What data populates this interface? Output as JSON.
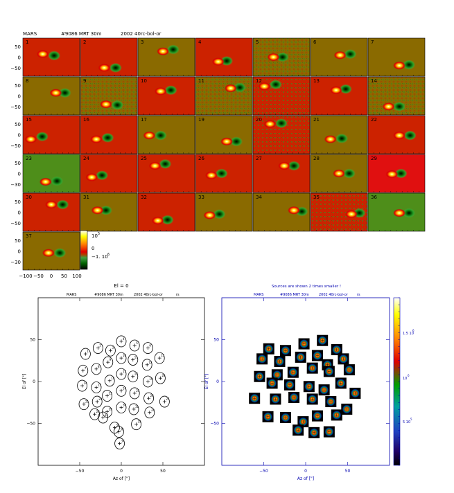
{
  "header": {
    "source": "MARS",
    "scan": "#9086 MRT 30m",
    "project": "2002 40rc-bol-or"
  },
  "colors": {
    "bg_red": "#cc2200",
    "bg_olive": "#8a6a00",
    "bg_green": "#4e8e1a",
    "bg_bright_red": "#e01010",
    "cb_ticks_color": "#000000",
    "right_plot_text": "#0000b0"
  },
  "top_grid": {
    "panels": [
      {
        "n": "1",
        "bg": "red"
      },
      {
        "n": "2",
        "bg": "red"
      },
      {
        "n": "3",
        "bg": "olive"
      },
      {
        "n": "4",
        "bg": "red"
      },
      {
        "n": "5",
        "bg": "olive_noisy"
      },
      {
        "n": "6",
        "bg": "olive"
      },
      {
        "n": "7",
        "bg": "olive"
      },
      {
        "n": "8",
        "bg": "olive"
      },
      {
        "n": "9",
        "bg": "olive_noisy"
      },
      {
        "n": "10",
        "bg": "red"
      },
      {
        "n": "11",
        "bg": "olive_noisy"
      },
      {
        "n": "12",
        "bg": "red_noisy"
      },
      {
        "n": "13",
        "bg": "red"
      },
      {
        "n": "14",
        "bg": "olive_noisy"
      },
      {
        "n": "15",
        "bg": "red"
      },
      {
        "n": "16",
        "bg": "red"
      },
      {
        "n": "17",
        "bg": "olive"
      },
      {
        "n": "19",
        "bg": "olive"
      },
      {
        "n": "20",
        "bg": "red_noisy"
      },
      {
        "n": "21",
        "bg": "olive"
      },
      {
        "n": "22",
        "bg": "red"
      },
      {
        "n": "23",
        "bg": "green"
      },
      {
        "n": "24",
        "bg": "red"
      },
      {
        "n": "25",
        "bg": "red"
      },
      {
        "n": "26",
        "bg": "red"
      },
      {
        "n": "27",
        "bg": "red"
      },
      {
        "n": "28",
        "bg": "olive"
      },
      {
        "n": "29",
        "bg": "bright_red"
      },
      {
        "n": "30",
        "bg": "red"
      },
      {
        "n": "31",
        "bg": "olive"
      },
      {
        "n": "32",
        "bg": "red"
      },
      {
        "n": "33",
        "bg": "olive"
      },
      {
        "n": "34",
        "bg": "olive"
      },
      {
        "n": "35",
        "bg": "red_noisy"
      },
      {
        "n": "36",
        "bg": "green"
      },
      {
        "n": "37",
        "bg": "olive"
      }
    ],
    "y_ticks_rows": [
      [
        "50",
        "0",
        "−50"
      ],
      [
        "50",
        "0",
        "−50"
      ],
      [
        "50",
        "0",
        "−50"
      ],
      [
        "50",
        "0",
        "−30"
      ],
      [
        "50",
        "0",
        "−50"
      ],
      [
        "50",
        "0",
        "−30"
      ]
    ],
    "x_ticks": [
      "−100",
      "−50",
      "0",
      "50",
      "100"
    ],
    "colorbar_labels": [
      "10",
      "5",
      "0",
      "−1. 10",
      "6"
    ]
  },
  "chart_data": [
    {
      "type": "scatter",
      "title": "El = 0",
      "subtitle_parts": [
        "MARS",
        "#9086 MRT 30m",
        "2002 40rc-bol-or",
        "rs"
      ],
      "xlabel": "Az of [\"]",
      "ylabel": "El of [\"]",
      "xlim": [
        -100,
        100
      ],
      "ylim": [
        -100,
        100
      ],
      "xticks": [
        "−50",
        "0",
        "50"
      ],
      "yticks": [
        "50",
        "0",
        "−50"
      ],
      "points": [
        {
          "id": "1",
          "x": -43,
          "y": 33
        },
        {
          "id": "2",
          "x": -28,
          "y": 40
        },
        {
          "id": "3",
          "x": -13,
          "y": 37
        },
        {
          "id": "4",
          "x": 0,
          "y": 48
        },
        {
          "id": "5",
          "x": 16,
          "y": 43
        },
        {
          "id": "6",
          "x": 32,
          "y": 40
        },
        {
          "id": "7",
          "x": -46,
          "y": 13
        },
        {
          "id": "8",
          "x": -30,
          "y": 15
        },
        {
          "id": "9",
          "x": -16,
          "y": 23
        },
        {
          "id": "10",
          "x": 0,
          "y": 28
        },
        {
          "id": "11",
          "x": 14,
          "y": 26
        },
        {
          "id": "12",
          "x": 31,
          "y": 20
        },
        {
          "id": "13",
          "x": 46,
          "y": 28
        },
        {
          "id": "14",
          "x": -47,
          "y": -5
        },
        {
          "id": "15",
          "x": -30,
          "y": -7
        },
        {
          "id": "16",
          "x": -14,
          "y": 1
        },
        {
          "id": "17",
          "x": 0,
          "y": 9
        },
        {
          "id": "18",
          "x": 14,
          "y": 6
        },
        {
          "id": "19",
          "x": 32,
          "y": 0
        },
        {
          "id": "20",
          "x": 47,
          "y": 4
        },
        {
          "id": "21",
          "x": -45,
          "y": -27
        },
        {
          "id": "22",
          "x": -29,
          "y": -24
        },
        {
          "id": "23",
          "x": -17,
          "y": -17
        },
        {
          "id": "24",
          "x": 0,
          "y": -11
        },
        {
          "id": "25",
          "x": 16,
          "y": -14
        },
        {
          "id": "26",
          "x": 33,
          "y": -20
        },
        {
          "id": "27",
          "x": 52,
          "y": -24
        },
        {
          "id": "28",
          "x": -32,
          "y": -39
        },
        {
          "id": "29",
          "x": -17,
          "y": -36
        },
        {
          "id": "30",
          "x": 0,
          "y": -31
        },
        {
          "id": "31",
          "x": 15,
          "y": -33
        },
        {
          "id": "32",
          "x": 34,
          "y": -37
        },
        {
          "id": "33",
          "x": -22,
          "y": -43
        },
        {
          "id": "34",
          "x": -8,
          "y": -55
        },
        {
          "id": "35",
          "x": 18,
          "y": -51
        },
        {
          "id": "36",
          "x": -3,
          "y": -60
        },
        {
          "id": "37",
          "x": -2,
          "y": -74
        }
      ]
    },
    {
      "type": "scatter",
      "title": "Sources are shown 2 times smaller !",
      "subtitle_parts": [
        "MARS",
        "#9086 MRT 30m",
        "2002 40rc-bol-or",
        "rs"
      ],
      "xlabel": "Az of [\"]",
      "ylabel": "El of [\"]",
      "xlim": [
        -100,
        100
      ],
      "ylim": [
        -100,
        100
      ],
      "xticks": [
        "−50",
        "0",
        "50"
      ],
      "yticks": [
        "50",
        "0",
        "−50"
      ],
      "colorbar_ticks": [
        "1.5 10",
        "6",
        "10",
        "6",
        "5 10",
        "5"
      ],
      "points": [
        {
          "x": -44,
          "y": 39
        },
        {
          "x": -24,
          "y": 37
        },
        {
          "x": -2,
          "y": 45
        },
        {
          "x": 20,
          "y": 49
        },
        {
          "x": 37,
          "y": 38
        },
        {
          "x": -52,
          "y": 27
        },
        {
          "x": -31,
          "y": 24
        },
        {
          "x": -6,
          "y": 29
        },
        {
          "x": 14,
          "y": 31
        },
        {
          "x": 26,
          "y": 20
        },
        {
          "x": 45,
          "y": 27
        },
        {
          "x": -55,
          "y": 6
        },
        {
          "x": -34,
          "y": 8
        },
        {
          "x": -15,
          "y": 11
        },
        {
          "x": 8,
          "y": 16
        },
        {
          "x": 28,
          "y": 12
        },
        {
          "x": 52,
          "y": 14
        },
        {
          "x": -40,
          "y": -2
        },
        {
          "x": -19,
          "y": -4
        },
        {
          "x": 4,
          "y": -6
        },
        {
          "x": 22,
          "y": -10
        },
        {
          "x": 42,
          "y": -2
        },
        {
          "x": 59,
          "y": -14
        },
        {
          "x": -61,
          "y": -20
        },
        {
          "x": -36,
          "y": -21
        },
        {
          "x": -14,
          "y": -19
        },
        {
          "x": 8,
          "y": -21
        },
        {
          "x": 30,
          "y": -24
        },
        {
          "x": 49,
          "y": -33
        },
        {
          "x": -45,
          "y": -42
        },
        {
          "x": -24,
          "y": -43
        },
        {
          "x": -3,
          "y": -48
        },
        {
          "x": 14,
          "y": -41
        },
        {
          "x": 37,
          "y": -40
        },
        {
          "x": -9,
          "y": -58
        },
        {
          "x": 10,
          "y": -61
        },
        {
          "x": 28,
          "y": -60
        }
      ]
    }
  ]
}
